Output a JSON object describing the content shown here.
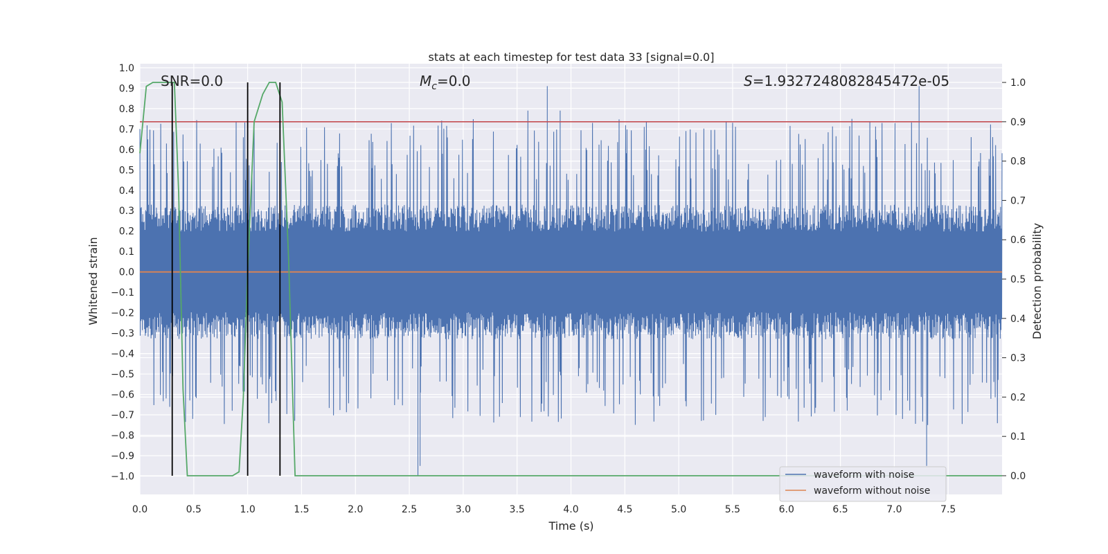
{
  "chart_data": {
    "type": "line",
    "title": "stats at each timestep for test data 33 [signal=0.0]",
    "xlabel": "Time (s)",
    "ylabel": "Whitened strain",
    "y2label": "Detection probability",
    "xlim": [
      0.0,
      8.0
    ],
    "ylim": [
      -1.09,
      1.02
    ],
    "y2lim": [
      -0.0476,
      1.0476
    ],
    "xticks": [
      "0.0",
      "0.5",
      "1.0",
      "1.5",
      "2.0",
      "2.5",
      "3.0",
      "3.5",
      "4.0",
      "4.5",
      "5.0",
      "5.5",
      "6.0",
      "6.5",
      "7.0",
      "7.5"
    ],
    "yticks": [
      "1.0",
      "0.9",
      "0.8",
      "0.7",
      "0.6",
      "0.5",
      "0.4",
      "0.3",
      "0.2",
      "0.1",
      "0.0",
      "−0.1",
      "−0.2",
      "−0.3",
      "−0.4",
      "−0.5",
      "−0.6",
      "−0.7",
      "−0.8",
      "−0.9",
      "−1.0"
    ],
    "y2ticks": [
      "0.0",
      "0.1",
      "0.2",
      "0.3",
      "0.4",
      "0.5",
      "0.6",
      "0.7",
      "0.8",
      "0.9",
      "1.0"
    ],
    "annotations": {
      "snr": "SNR=0.0",
      "mc_symbol": "M",
      "mc_subscript": "c",
      "mc_value": "=0.0",
      "s_symbol": "S",
      "s_value": "=1.9327248082845472e-05"
    },
    "series": [
      {
        "name": "waveform with noise",
        "color": "#4c72b0",
        "axis": "left",
        "description": "dense noise trace, approx ±0.35 body with spikes",
        "body_amplitude": 0.33,
        "envelope_peaks": [
          {
            "x": 0.3,
            "y": 0.91
          },
          {
            "x": 0.3,
            "y": -0.97
          },
          {
            "x": 2.58,
            "y": -1.0
          },
          {
            "x": 2.6,
            "y": -0.95
          },
          {
            "x": 3.78,
            "y": 0.91
          },
          {
            "x": 7.23,
            "y": 0.91
          },
          {
            "x": 7.3,
            "y": -0.95
          },
          {
            "x": 3.6,
            "y": 0.79
          },
          {
            "x": 3.9,
            "y": 0.79
          }
        ]
      },
      {
        "name": "waveform without noise",
        "color": "#dd8452",
        "axis": "left",
        "x": [
          0.0,
          8.0
        ],
        "y": [
          0.0,
          0.0
        ]
      },
      {
        "name": "detection probability",
        "color": "#55a868",
        "axis": "right",
        "x": [
          0.0,
          0.06,
          0.12,
          0.2,
          0.28,
          0.32,
          0.36,
          0.4,
          0.44,
          0.86,
          0.92,
          0.96,
          1.0,
          1.06,
          1.14,
          1.2,
          1.26,
          1.32,
          1.38,
          1.44,
          8.0
        ],
        "y": [
          0.82,
          0.99,
          1.0,
          1.0,
          1.0,
          1.0,
          0.72,
          0.22,
          0.0,
          0.0,
          0.01,
          0.2,
          0.52,
          0.9,
          0.97,
          1.0,
          1.0,
          0.95,
          0.55,
          0.0,
          0.0
        ]
      }
    ],
    "threshold": {
      "color": "#c44e52",
      "value_right_axis": 0.9
    },
    "vertical_markers": {
      "color": "#000000",
      "x": [
        0.3,
        1.0,
        1.3
      ],
      "y_top": 1.0,
      "y_bottom": 0.0
    },
    "legend": {
      "location": "lower-right",
      "entries": [
        {
          "label": "waveform with noise",
          "color": "#4c72b0"
        },
        {
          "label": "waveform without noise",
          "color": "#dd8452"
        }
      ]
    },
    "grid": true,
    "background": "#eaeaf2"
  }
}
